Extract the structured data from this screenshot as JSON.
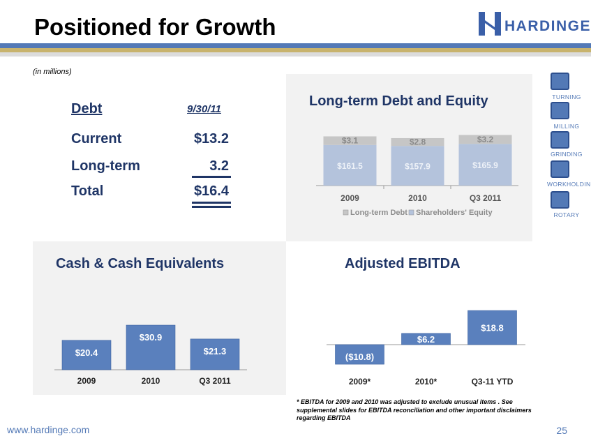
{
  "title": "Positioned for Growth",
  "brand": {
    "name": "HARDINGE",
    "color": "#3a5fa8"
  },
  "units_note": "(in millions)",
  "debt_table": {
    "header_label": "Debt",
    "header_date": "9/30/11",
    "rows": [
      {
        "label": "Current",
        "value": "$13.2"
      },
      {
        "label": "Long-term",
        "value": "3.2"
      },
      {
        "label": "Total",
        "value": "$16.4"
      }
    ]
  },
  "sidebar": [
    {
      "label": "TURNING",
      "icon": "turning-icon"
    },
    {
      "label": "MILLING",
      "icon": "milling-icon"
    },
    {
      "label": "GRINDING",
      "icon": "grinding-icon"
    },
    {
      "label": "WORKHOLDING",
      "icon": "workholding-icon"
    },
    {
      "label": "ROTARY",
      "icon": "rotary-icon"
    }
  ],
  "chart_data": [
    {
      "type": "bar",
      "stacked": true,
      "title": "Long-term Debt and Equity",
      "categories": [
        "2009",
        "2010",
        "Q3 2011"
      ],
      "series": [
        {
          "name": "Long-term Debt",
          "values": [
            3.1,
            2.8,
            3.2
          ],
          "labels": [
            "$3.1",
            "$2.8",
            "$3.2"
          ],
          "color": "#c6c6c6"
        },
        {
          "name": "Shareholders' Equity",
          "values": [
            161.5,
            157.9,
            165.9
          ],
          "labels": [
            "$161.5",
            "$157.9",
            "$165.9"
          ],
          "color": "#b4c3dc"
        }
      ],
      "legend": "bottom"
    },
    {
      "type": "bar",
      "title": "Cash & Cash Equivalents",
      "categories": [
        "2009",
        "2010",
        "Q3 2011"
      ],
      "values": [
        20.4,
        30.9,
        21.3
      ],
      "labels": [
        "$20.4",
        "$30.9",
        "$21.3"
      ],
      "color": "#5a80bd"
    },
    {
      "type": "bar",
      "title": "Adjusted EBITDA",
      "categories": [
        "2009*",
        "2010*",
        "Q3-11 YTD"
      ],
      "values": [
        -10.8,
        6.2,
        18.8
      ],
      "labels": [
        "($10.8)",
        "$6.2",
        "$18.8"
      ],
      "color": "#5a80bd"
    }
  ],
  "footnote": "* EBITDA for 2009 and 2010 was adjusted to exclude unusual items . See supplemental slides for EBITDA reconciliation  and  other important disclaimers regarding EBITDA",
  "footer": {
    "url": "www.hardinge.com",
    "page": "25"
  }
}
